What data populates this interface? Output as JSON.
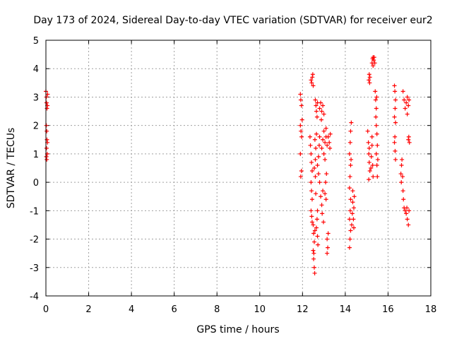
{
  "chart_data": {
    "type": "scatter",
    "title": "Day 173 of 2024, Sidereal Day-to-day VTEC variation (SDTVAR) for receiver eur2",
    "xlabel": "GPS time / hours",
    "ylabel": "SDTVAR / TECUs",
    "xlim": [
      0,
      18
    ],
    "ylim": [
      -4,
      5
    ],
    "xticks": [
      "0",
      "2",
      "4",
      "6",
      "8",
      "10",
      "12",
      "14",
      "16",
      "18"
    ],
    "yticks": [
      "-4",
      "-3",
      "-2",
      "-1",
      "0",
      "1",
      "2",
      "3",
      "4",
      "5"
    ],
    "grid": true,
    "marker": "+",
    "series": [
      {
        "name": "SDTVAR",
        "color": "#ff0000",
        "points": [
          [
            0.0,
            3.2
          ],
          [
            0.02,
            3.0
          ],
          [
            0.03,
            2.8
          ],
          [
            0.05,
            2.6
          ],
          [
            0.07,
            2.7
          ],
          [
            0.08,
            3.1
          ],
          [
            0.02,
            2.0
          ],
          [
            0.04,
            1.8
          ],
          [
            0.05,
            1.5
          ],
          [
            0.03,
            1.2
          ],
          [
            0.06,
            1.0
          ],
          [
            0.04,
            0.8
          ],
          [
            0.07,
            1.4
          ],
          [
            0.02,
            0.9
          ],
          [
            11.9,
            3.1
          ],
          [
            11.92,
            2.9
          ],
          [
            11.95,
            2.7
          ],
          [
            11.9,
            2.0
          ],
          [
            11.93,
            1.8
          ],
          [
            11.96,
            1.6
          ],
          [
            11.9,
            1.0
          ],
          [
            11.95,
            0.4
          ],
          [
            11.92,
            0.2
          ],
          [
            11.98,
            2.2
          ],
          [
            12.35,
            1.6
          ],
          [
            12.37,
            1.3
          ],
          [
            12.4,
            1.0
          ],
          [
            12.42,
            0.7
          ],
          [
            12.45,
            0.4
          ],
          [
            12.4,
            0.0
          ],
          [
            12.42,
            -0.3
          ],
          [
            12.45,
            -0.6
          ],
          [
            12.4,
            -1.0
          ],
          [
            12.43,
            -1.2
          ],
          [
            12.45,
            -1.4
          ],
          [
            12.4,
            3.6
          ],
          [
            12.43,
            3.5
          ],
          [
            12.46,
            3.7
          ],
          [
            12.48,
            3.8
          ],
          [
            12.5,
            3.4
          ],
          [
            12.5,
            -1.5
          ],
          [
            12.52,
            -1.8
          ],
          [
            12.55,
            -2.1
          ],
          [
            12.5,
            -2.4
          ],
          [
            12.52,
            -2.7
          ],
          [
            12.55,
            -3.0
          ],
          [
            12.57,
            -3.2
          ],
          [
            12.53,
            -2.5
          ],
          [
            12.58,
            -1.7
          ],
          [
            12.55,
            0.5
          ],
          [
            12.6,
            0.8
          ],
          [
            12.62,
            1.2
          ],
          [
            12.58,
            1.5
          ],
          [
            12.65,
            1.7
          ],
          [
            12.6,
            0.2
          ],
          [
            12.62,
            -0.4
          ],
          [
            12.6,
            2.9
          ],
          [
            12.63,
            2.7
          ],
          [
            12.65,
            2.5
          ],
          [
            12.7,
            2.8
          ],
          [
            12.68,
            2.3
          ],
          [
            12.65,
            -1.6
          ],
          [
            12.7,
            -1.9
          ],
          [
            12.72,
            -2.2
          ],
          [
            12.68,
            -1.3
          ],
          [
            12.7,
            -1.0
          ],
          [
            12.7,
            0.6
          ],
          [
            12.75,
            0.9
          ],
          [
            12.78,
            1.3
          ],
          [
            12.8,
            1.6
          ],
          [
            12.75,
            0.3
          ],
          [
            12.8,
            0.0
          ],
          [
            12.8,
            2.6
          ],
          [
            12.85,
            2.8
          ],
          [
            12.9,
            2.5
          ],
          [
            12.95,
            2.7
          ],
          [
            13.0,
            2.4
          ],
          [
            12.88,
            2.2
          ],
          [
            12.85,
            -0.5
          ],
          [
            12.9,
            -0.8
          ],
          [
            12.92,
            -1.1
          ],
          [
            12.95,
            -0.3
          ],
          [
            12.98,
            -1.4
          ],
          [
            12.9,
            1.2
          ],
          [
            12.95,
            1.5
          ],
          [
            13.0,
            1.8
          ],
          [
            13.05,
            1.4
          ],
          [
            13.1,
            1.6
          ],
          [
            13.0,
            1.0
          ],
          [
            13.05,
            0.8
          ],
          [
            13.05,
            -0.4
          ],
          [
            13.1,
            -0.6
          ],
          [
            13.08,
            0.0
          ],
          [
            13.12,
            0.3
          ],
          [
            13.15,
            -2.0
          ],
          [
            13.18,
            -2.3
          ],
          [
            13.2,
            -1.8
          ],
          [
            13.15,
            -2.5
          ],
          [
            13.15,
            1.3
          ],
          [
            13.2,
            1.6
          ],
          [
            13.25,
            1.4
          ],
          [
            13.3,
            1.7
          ],
          [
            13.28,
            1.2
          ],
          [
            13.1,
            1.9
          ],
          [
            14.2,
            -2.3
          ],
          [
            14.22,
            -2.0
          ],
          [
            14.25,
            -1.7
          ],
          [
            14.2,
            -1.3
          ],
          [
            14.23,
            -1.0
          ],
          [
            14.25,
            -0.6
          ],
          [
            14.2,
            -0.2
          ],
          [
            14.22,
            0.2
          ],
          [
            14.25,
            0.6
          ],
          [
            14.2,
            1.0
          ],
          [
            14.23,
            1.4
          ],
          [
            14.25,
            1.8
          ],
          [
            14.28,
            2.1
          ],
          [
            14.27,
            0.8
          ],
          [
            14.3,
            -1.5
          ],
          [
            14.33,
            -1.1
          ],
          [
            14.35,
            -0.7
          ],
          [
            14.38,
            -1.3
          ],
          [
            14.4,
            -1.6
          ],
          [
            14.35,
            -0.3
          ],
          [
            14.4,
            -0.9
          ],
          [
            14.42,
            -0.5
          ],
          [
            15.05,
            1.8
          ],
          [
            15.08,
            1.4
          ],
          [
            15.1,
            1.0
          ],
          [
            15.12,
            0.7
          ],
          [
            15.15,
            0.4
          ],
          [
            15.1,
            0.1
          ],
          [
            15.12,
            1.2
          ],
          [
            15.1,
            3.6
          ],
          [
            15.12,
            3.8
          ],
          [
            15.15,
            3.7
          ],
          [
            15.14,
            3.5
          ],
          [
            15.2,
            0.5
          ],
          [
            15.22,
            0.9
          ],
          [
            15.25,
            1.3
          ],
          [
            15.28,
            0.6
          ],
          [
            15.3,
            0.2
          ],
          [
            15.25,
            1.6
          ],
          [
            15.25,
            4.2
          ],
          [
            15.28,
            4.35
          ],
          [
            15.3,
            4.4
          ],
          [
            15.33,
            4.3
          ],
          [
            15.35,
            4.4
          ],
          [
            15.38,
            4.2
          ],
          [
            15.3,
            4.1
          ],
          [
            15.4,
            3.2
          ],
          [
            15.42,
            2.9
          ],
          [
            15.45,
            2.6
          ],
          [
            15.43,
            2.3
          ],
          [
            15.45,
            2.0
          ],
          [
            15.48,
            1.7
          ],
          [
            15.5,
            1.3
          ],
          [
            15.45,
            1.0
          ],
          [
            15.48,
            0.6
          ],
          [
            15.5,
            0.2
          ],
          [
            15.52,
            0.8
          ],
          [
            15.47,
            3.0
          ],
          [
            16.3,
            3.4
          ],
          [
            16.32,
            3.2
          ],
          [
            16.35,
            2.9
          ],
          [
            16.33,
            2.6
          ],
          [
            16.3,
            2.3
          ],
          [
            16.35,
            2.1
          ],
          [
            16.3,
            1.4
          ],
          [
            16.33,
            1.1
          ],
          [
            16.35,
            0.8
          ],
          [
            16.32,
            1.6
          ],
          [
            16.6,
            0.3
          ],
          [
            16.63,
            0.6
          ],
          [
            16.65,
            0.8
          ],
          [
            16.62,
            0.0
          ],
          [
            16.68,
            0.2
          ],
          [
            16.7,
            -0.3
          ],
          [
            16.72,
            -0.6
          ],
          [
            16.75,
            -0.9
          ],
          [
            16.8,
            -1.0
          ],
          [
            16.85,
            -1.1
          ],
          [
            16.9,
            -1.3
          ],
          [
            16.95,
            -1.5
          ],
          [
            16.98,
            -1.0
          ],
          [
            16.88,
            -0.9
          ],
          [
            16.7,
            3.2
          ],
          [
            16.75,
            2.9
          ],
          [
            16.8,
            2.6
          ],
          [
            16.85,
            2.8
          ],
          [
            16.9,
            3.0
          ],
          [
            16.95,
            2.7
          ],
          [
            16.9,
            2.4
          ],
          [
            16.98,
            2.9
          ],
          [
            16.95,
            1.5
          ],
          [
            17.0,
            1.4
          ],
          [
            16.97,
            1.6
          ]
        ]
      }
    ]
  }
}
